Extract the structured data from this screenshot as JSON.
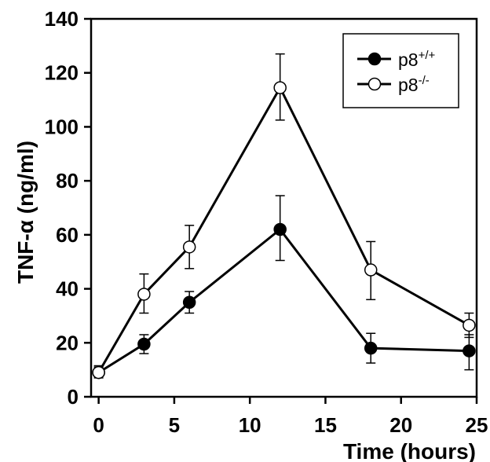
{
  "chart_data": {
    "type": "line",
    "xlabel": "Time (hours)",
    "ylabel": "TNF-α (ng/ml)",
    "xlim": [
      -0.5,
      25
    ],
    "ylim": [
      0,
      140
    ],
    "x_ticks": [
      0,
      5,
      10,
      15,
      20,
      25
    ],
    "y_ticks": [
      0,
      20,
      40,
      60,
      80,
      100,
      120,
      140
    ],
    "legend_position": "top-right",
    "grid": false,
    "series": [
      {
        "name": "p8+/+",
        "name_base": "p8",
        "name_sup": "+/+",
        "marker": "filled-circle",
        "color": "#000000",
        "x": [
          0,
          3,
          6,
          12,
          18,
          24.5
        ],
        "y": [
          9,
          19.5,
          35,
          62,
          18,
          17
        ],
        "err_low": [
          2,
          3.5,
          4,
          11.5,
          5.5,
          7
        ],
        "err_high": [
          2.5,
          3.5,
          4,
          12.5,
          5.5,
          6
        ]
      },
      {
        "name": "p8-/-",
        "name_base": "p8",
        "name_sup": "-/-",
        "marker": "open-circle",
        "color": "#000000",
        "x": [
          0,
          3,
          6,
          12,
          18,
          24.5
        ],
        "y": [
          9,
          38,
          55.5,
          114.5,
          47,
          26.5
        ],
        "err_low": [
          1.5,
          7,
          8,
          12,
          11,
          4.5
        ],
        "err_high": [
          2,
          7.5,
          8,
          12.5,
          10.5,
          4.5
        ]
      }
    ]
  }
}
